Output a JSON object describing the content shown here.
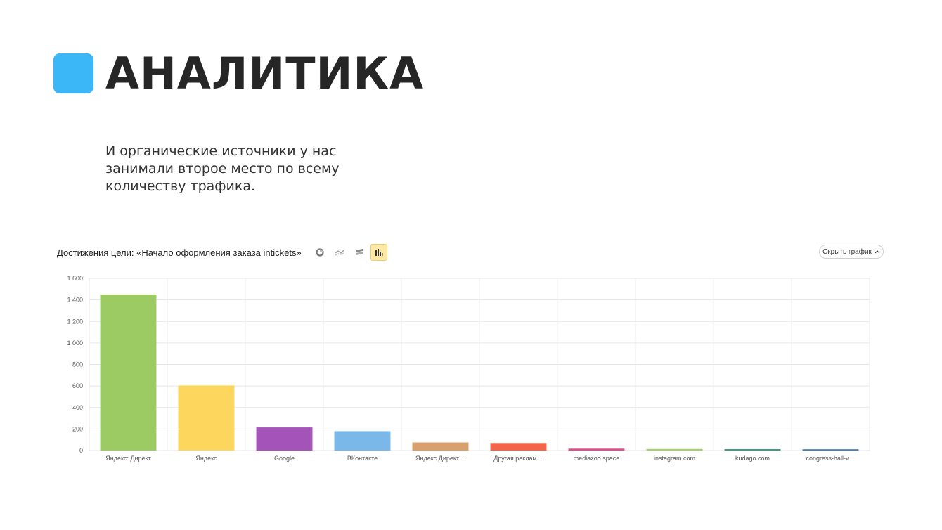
{
  "title": "АНАЛИТИКА",
  "intro_text": "И органические источники у нас занимали второе место по всему количеству трафика.",
  "colors": {
    "accent": "#3bb6f7",
    "title_text": "#262626"
  },
  "toolbar": {
    "chart_title": "Достижения цели: «Начало оформления заказа intickets»",
    "icons": [
      "pie-chart-icon",
      "line-chart-icon",
      "stacked-area-icon",
      "bar-chart-icon"
    ],
    "active_icon": "bar-chart-icon",
    "hide_button_label": "Скрыть график"
  },
  "chart_data": {
    "type": "bar",
    "categories": [
      "Яндекс: Директ",
      "Яндекс",
      "Google",
      "ВКонтакте",
      "Яндекс.Директ…",
      "Другая реклам…",
      "mediazoo.space",
      "instagram.com",
      "kudago.com",
      "congress-hall-v…"
    ],
    "values": [
      1450,
      605,
      215,
      180,
      75,
      70,
      18,
      14,
      13,
      12
    ],
    "bar_colors": [
      "#9bcb62",
      "#fdd65e",
      "#a453b8",
      "#79b8e8",
      "#d9a06c",
      "#f4644b",
      "#e1508e",
      "#9fd06a",
      "#3f9e7a",
      "#3f7fbf"
    ],
    "ylim": [
      0,
      1600
    ],
    "yticks": [
      0,
      200,
      400,
      600,
      800,
      1000,
      1200,
      1400,
      1600
    ],
    "ytick_labels": [
      "0",
      "200",
      "400",
      "600",
      "800",
      "1 000",
      "1 200",
      "1 400",
      "1 600"
    ],
    "grid": true,
    "xlabel": "",
    "ylabel": ""
  }
}
